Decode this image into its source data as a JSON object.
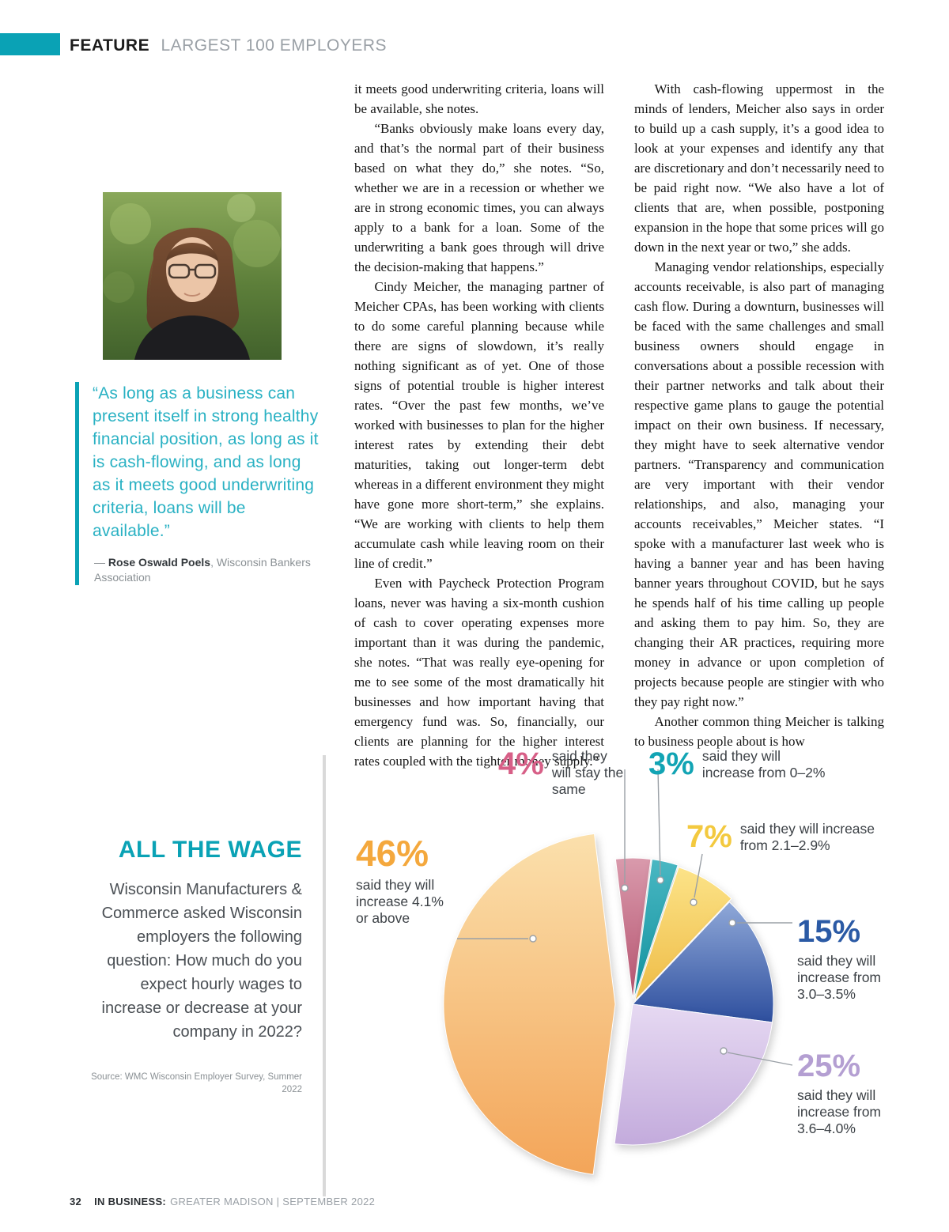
{
  "header": {
    "feature_label": "FEATURE",
    "feature_topic": "LARGEST 100 EMPLOYERS"
  },
  "pull_quote": {
    "text": "“As long as a business can present itself in strong healthy financial position, as long as it is cash-flowing, and as long as it meets good underwriting criteria, loans will be available.”",
    "attribution_dash": "— ",
    "attribution_name": "Rose Oswald Poels",
    "attribution_rest": ", Wisconsin Bankers Association"
  },
  "article": {
    "column1": [
      "it meets good underwriting criteria, loans will be available, she notes.",
      "“Banks obviously make loans every day, and that’s the normal part of their business based on what they do,” she notes. “So, whether we are in a recession or whether we are in strong economic times, you can always apply to a bank for a loan. Some of the underwriting a bank goes through will drive the decision-making that happens.”",
      "Cindy Meicher, the managing partner of Meicher CPAs, has been working with clients to do some careful planning because while there are signs of slowdown, it’s really nothing significant as of yet. One of those signs of potential trouble is higher interest rates. “Over the past few months, we’ve worked with businesses to plan for the higher interest rates by extending their debt maturities, taking out longer-term debt whereas in a different environment they might have gone more short-term,” she explains. “We are working with clients to help them accumulate cash while leaving room on their line of credit.”",
      "Even with Paycheck Protection Program loans, never was having a six-month cushion of cash to cover operating expenses more important than it was during the pandemic, she notes. “That was really eye-opening for me to see some of the most dramatically hit businesses and how important having that emergency fund was. So, financially, our clients are planning for the higher interest rates coupled with the tighter money supply.”"
    ],
    "column2": [
      "With cash-flowing uppermost in the minds of lenders, Meicher also says in order to build up a cash supply, it’s a good idea to look at your expenses and identify any that are discretionary and don’t necessarily need to be paid right now. “We also have a lot of clients that are, when possible, postponing expansion in the hope that some prices will go down in the next year or two,” she adds.",
      "Managing vendor relationships, especially accounts receivable, is also part of managing cash flow. During a downturn, businesses will be faced with the same challenges and small business owners should engage in conversations about a possible recession with their partner networks and talk about their respective game plans to gauge the potential impact on their own business. If necessary, they might have to seek alternative vendor partners. “Transparency and communication are very important with their vendor relationships, and also, managing your accounts receivables,” Meicher states. “I spoke with a manufacturer last week who is having a banner year and has been having banner years throughout COVID, but he says he spends half of his time calling up people and asking them to pay him. So, they are changing their AR practices, requiring more money in advance or upon completion of projects because people are stingier with who they pay right now.”",
      "Another common thing Meicher is talking to business people about is how"
    ]
  },
  "chart_data": {
    "type": "pie",
    "title": "ALL THE WAGE",
    "description": "Wisconsin Manufacturers & Commerce asked Wisconsin employers the following question: How much do you expect hourly wages to increase or decrease at your company in 2022?",
    "source": "Source: WMC Wisconsin Employer Survey, Summer 2022",
    "start_angle_deg": -97,
    "slices": [
      {
        "value": 4,
        "pct": "4%",
        "label": "said they will stay the same",
        "color_start": "#d99aac",
        "color_end": "#b5536f",
        "pct_color": "#d75f87",
        "explode": 7,
        "r_scale": 1.0
      },
      {
        "value": 3,
        "pct": "3%",
        "label": "said they will increase from 0–2%",
        "color_start": "#49b7c2",
        "color_end": "#12929f",
        "pct_color": "#12a4b4",
        "explode": 7,
        "r_scale": 1.0
      },
      {
        "value": 7,
        "pct": "7%",
        "label": "said they will increase from 2.1–2.9%",
        "color_start": "#fce388",
        "color_end": "#eebb45",
        "pct_color": "#f3c93f",
        "explode": 5,
        "r_scale": 1.0
      },
      {
        "value": 15,
        "pct": "15%",
        "label": "said they will increase from 3.0–3.5%",
        "color_start": "#8fa8d8",
        "color_end": "#2e4f9e",
        "pct_color": "#2b5aa5",
        "explode": 0,
        "r_scale": 1.0
      },
      {
        "value": 25,
        "pct": "25%",
        "label": "said they will increase from 3.6–4.0%",
        "color_start": "#e6d9f2",
        "color_end": "#c3abdc",
        "pct_color": "#b49fd2",
        "explode": 0,
        "r_scale": 1.0
      },
      {
        "value": 46,
        "pct": "46%",
        "label": "said they will increase 4.1% or above",
        "color_start": "#fbe0ac",
        "color_end": "#f3a559",
        "pct_color": "#f4a83d",
        "explode": 22,
        "r_scale": 1.22
      }
    ]
  },
  "footer": {
    "page_number": "32",
    "publication": "IN BUSINESS:",
    "issue": "GREATER MADISON | SEPTEMBER 2022"
  },
  "colors": {
    "accent_teal": "#0aa2b5"
  }
}
